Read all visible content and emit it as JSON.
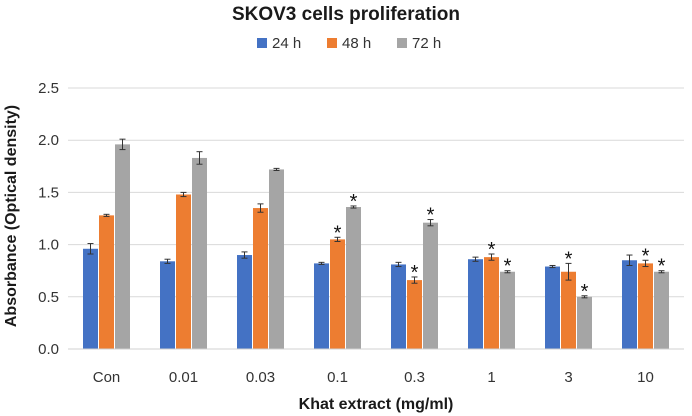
{
  "chart_data": {
    "type": "bar",
    "title": "SKOV3 cells proliferation",
    "xlabel": "Khat extract (mg/ml)",
    "ylabel": "Absorbance (Optical density)",
    "ylim": [
      0,
      2.5
    ],
    "yticks": [
      "0.0",
      "0.5",
      "1.0",
      "1.5",
      "2.0",
      "2.5"
    ],
    "categories": [
      "Con",
      "0.01",
      "0.03",
      "0.1",
      "0.3",
      "1",
      "3",
      "10"
    ],
    "legend_position": "top-center",
    "significance_marker": "*",
    "series": [
      {
        "name": "24 h",
        "color": "#4472C4",
        "values": [
          0.96,
          0.84,
          0.9,
          0.82,
          0.81,
          0.86,
          0.79,
          0.85
        ],
        "errors": [
          0.05,
          0.02,
          0.03,
          0.01,
          0.02,
          0.02,
          0.01,
          0.05
        ],
        "significant": [
          false,
          false,
          false,
          false,
          false,
          false,
          false,
          false
        ]
      },
      {
        "name": "48 h",
        "color": "#ED7D31",
        "values": [
          1.28,
          1.48,
          1.35,
          1.05,
          0.66,
          0.88,
          0.74,
          0.82
        ],
        "errors": [
          0.01,
          0.02,
          0.04,
          0.02,
          0.03,
          0.03,
          0.08,
          0.03
        ],
        "significant": [
          false,
          false,
          false,
          true,
          true,
          true,
          true,
          true
        ]
      },
      {
        "name": "72 h",
        "color": "#A5A5A5",
        "values": [
          1.96,
          1.83,
          1.72,
          1.36,
          1.21,
          0.74,
          0.5,
          0.74
        ],
        "errors": [
          0.05,
          0.06,
          0.01,
          0.01,
          0.03,
          0.01,
          0.01,
          0.01
        ],
        "significant": [
          false,
          false,
          false,
          true,
          true,
          true,
          true,
          true
        ]
      }
    ]
  }
}
